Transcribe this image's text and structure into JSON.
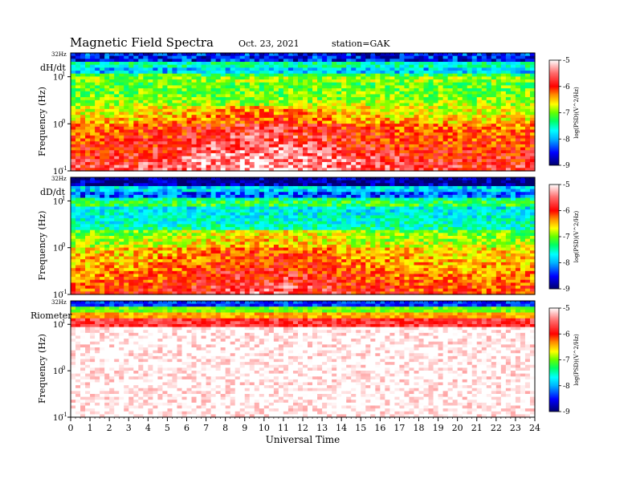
{
  "header": {
    "title": "Magnetic  Field  Spectra",
    "date": "Oct. 23, 2021",
    "station": "station=GAK"
  },
  "colors": {
    "colormap": [
      "#00006e",
      "#0000ff",
      "#00b4ff",
      "#00ffff",
      "#00ff64",
      "#64ff00",
      "#ffff00",
      "#ff8c00",
      "#ff0000",
      "#ff6e6e",
      "#ffffff"
    ]
  },
  "chart_data": [
    {
      "type": "heatmap",
      "panel_label": "dH/dt",
      "ylabel": "Frequency  (Hz)",
      "nyquist_label": "32Hz",
      "yticks": [
        "10",
        "10",
        "10"
      ],
      "ytick_exponents": [
        "1",
        "0",
        "-1"
      ],
      "ylim_hz": [
        0.1,
        32
      ],
      "yscale": "log",
      "colorbar": {
        "ticks": [
          "-5",
          "-6",
          "-7",
          "-8",
          "-9"
        ],
        "label": "log(PSD)(V^2/Hz)",
        "range": [
          -9,
          -5
        ]
      }
    },
    {
      "type": "heatmap",
      "panel_label": "dD/dt",
      "ylabel": "Frequency  (Hz)",
      "nyquist_label": "32Hz",
      "yticks": [
        "10",
        "10",
        "10"
      ],
      "ytick_exponents": [
        "1",
        "0",
        "-1"
      ],
      "ylim_hz": [
        0.1,
        32
      ],
      "yscale": "log",
      "colorbar": {
        "ticks": [
          "-5",
          "-6",
          "-7",
          "-8",
          "-9"
        ],
        "label": "log(PSD)(V^2/Hz)",
        "range": [
          -9,
          -5
        ]
      }
    },
    {
      "type": "heatmap",
      "panel_label": "Riometer",
      "ylabel": "Frequency  (Hz)",
      "nyquist_label": "32Hz",
      "yticks": [
        "10",
        "10",
        "10"
      ],
      "ytick_exponents": [
        "1",
        "0",
        "-1"
      ],
      "ylim_hz": [
        0.1,
        32
      ],
      "yscale": "log",
      "colorbar": {
        "ticks": [
          "-5",
          "-6",
          "-7",
          "-8",
          "-9"
        ],
        "label": "log(PSD)(V^2/Hz)",
        "range": [
          -9,
          -5
        ]
      }
    }
  ],
  "xaxis": {
    "label": "Universal  Time",
    "ticks": [
      "0",
      "1",
      "2",
      "3",
      "4",
      "5",
      "6",
      "7",
      "8",
      "9",
      "10",
      "11",
      "12",
      "13",
      "14",
      "15",
      "16",
      "17",
      "18",
      "19",
      "20",
      "21",
      "22",
      "23",
      "24"
    ],
    "xlim_hours": [
      0,
      24
    ]
  }
}
